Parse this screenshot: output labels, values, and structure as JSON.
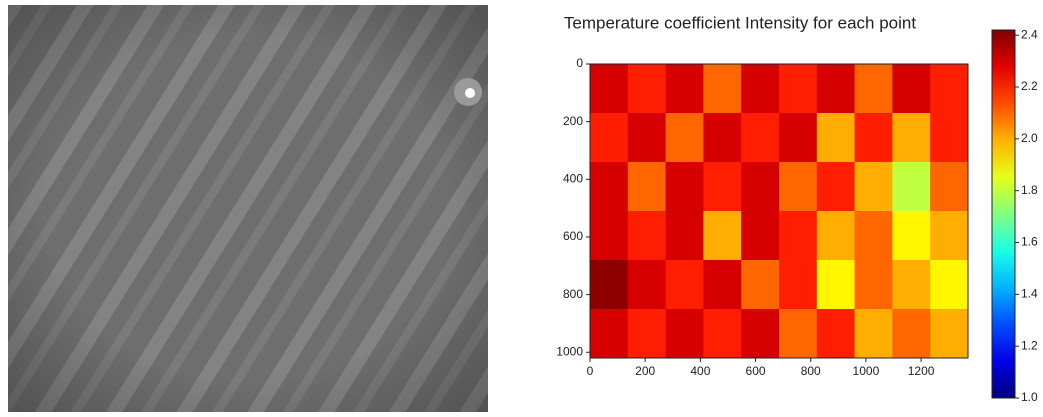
{
  "chart_data": {
    "type": "heatmap",
    "title": "Temperature coefficient Intensity for each point",
    "values": [
      [
        2.3,
        2.2,
        2.3,
        2.1,
        2.3,
        2.2,
        2.3,
        2.1,
        2.3,
        2.2
      ],
      [
        2.2,
        2.3,
        2.1,
        2.3,
        2.2,
        2.3,
        2.0,
        2.2,
        2.0,
        2.2
      ],
      [
        2.3,
        2.1,
        2.3,
        2.2,
        2.3,
        2.1,
        2.2,
        2.0,
        1.8,
        2.1
      ],
      [
        2.3,
        2.2,
        2.3,
        2.0,
        2.3,
        2.2,
        2.0,
        2.1,
        1.9,
        2.0
      ],
      [
        2.4,
        2.3,
        2.2,
        2.3,
        2.1,
        2.2,
        1.9,
        2.1,
        2.0,
        1.9
      ],
      [
        2.3,
        2.2,
        2.3,
        2.2,
        2.3,
        2.1,
        2.2,
        2.0,
        2.1,
        2.0
      ]
    ],
    "xlim": [
      0,
      1370
    ],
    "xticks": [
      0,
      200,
      400,
      600,
      800,
      1000,
      1200
    ],
    "ylim": [
      1020,
      0
    ],
    "yticks": [
      0,
      200,
      400,
      600,
      800,
      1000
    ],
    "colormap": "jet",
    "clim": [
      1.0,
      2.42
    ],
    "cticks": [
      {
        "value": 1.0,
        "label": "1.0"
      },
      1.2,
      1.4,
      1.6,
      1.8,
      {
        "value": 2.0,
        "label": "2.0"
      },
      2.2,
      2.4
    ]
  }
}
